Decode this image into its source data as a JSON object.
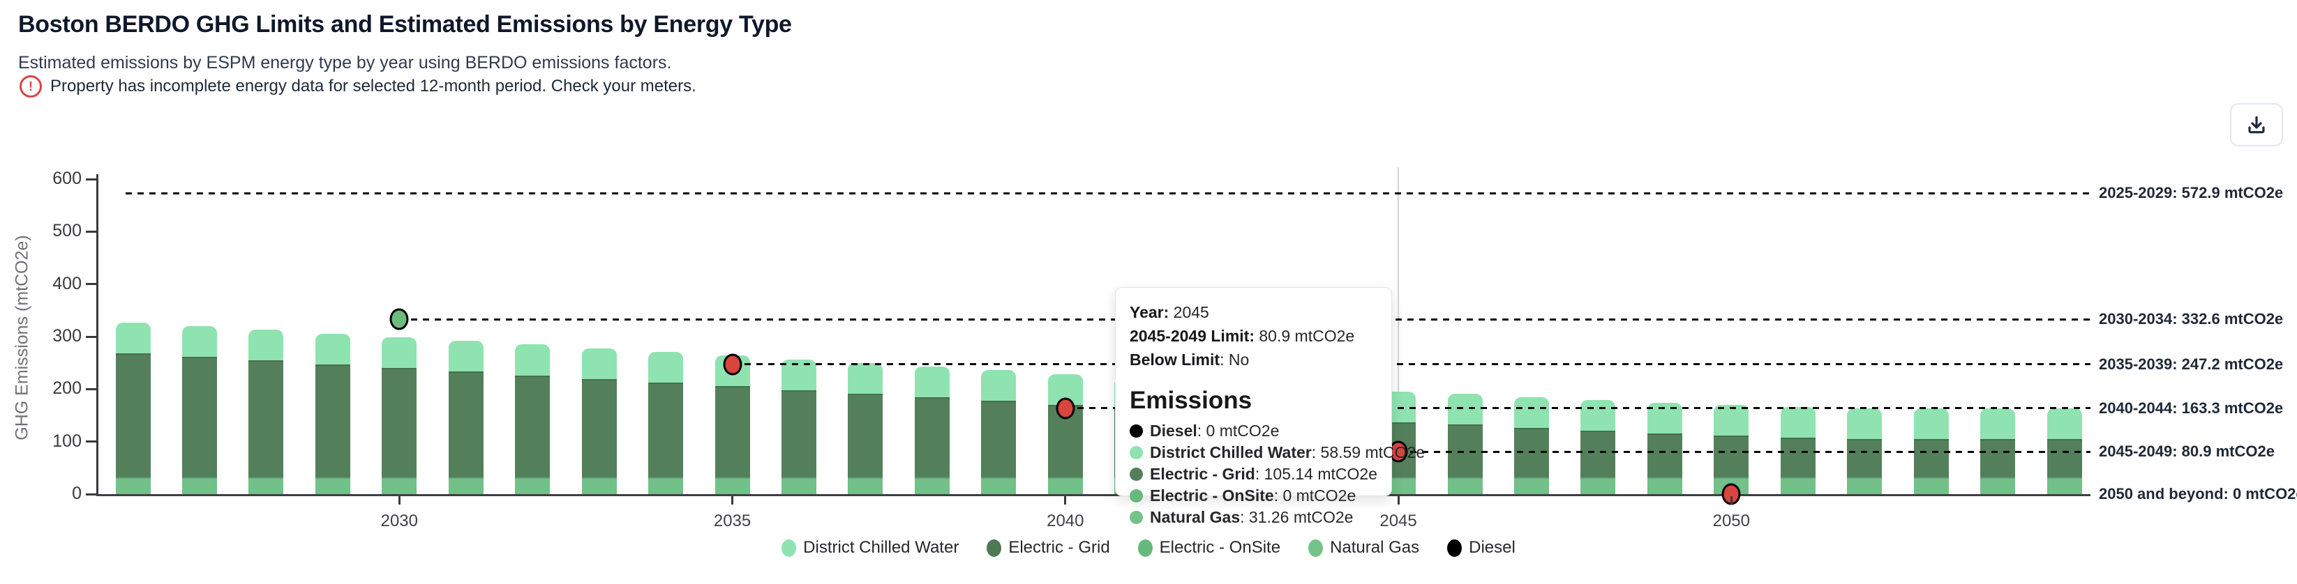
{
  "header": {
    "title": "Boston BERDO GHG Limits and Estimated Emissions by Energy Type",
    "subtitle": "Estimated emissions by ESPM energy type by year using BERDO emissions factors.",
    "warning_text": "Property has incomplete energy data for selected 12-month period. Check your meters.",
    "warning_glyph": "!",
    "warning_color": "#d64545"
  },
  "toolbar": {
    "download_icon": "download-icon"
  },
  "chart_data": {
    "type": "bar",
    "stacked": true,
    "ylabel": "GHG Emissions (mtCO2e)",
    "ylim": [
      0,
      600
    ],
    "yticks": [
      0,
      100,
      200,
      300,
      400,
      500,
      600
    ],
    "xticks": [
      2030,
      2035,
      2040,
      2045,
      2050
    ],
    "grid": false,
    "legend_position": "bottom",
    "years": [
      2026,
      2027,
      2028,
      2029,
      2030,
      2031,
      2032,
      2033,
      2034,
      2035,
      2036,
      2037,
      2038,
      2039,
      2040,
      2041,
      2042,
      2043,
      2044,
      2045,
      2046,
      2047,
      2048,
      2049,
      2050,
      2051,
      2052,
      2053,
      2054,
      2055
    ],
    "stack_order_bottom_to_top": [
      "Natural Gas",
      "Electric - Grid",
      "District Chilled Water"
    ],
    "series": [
      {
        "name": "Natural Gas",
        "color": "#73C088",
        "constant_value": 31.26
      },
      {
        "name": "Electric - Grid",
        "color": "#53805B",
        "values": [
          237,
          230,
          223,
          216,
          209,
          202,
          195,
          188,
          181,
          174,
          167,
          160,
          153,
          146,
          139,
          132,
          125,
          118,
          111,
          105.14,
          101,
          95,
          89,
          84,
          80,
          76,
          74,
          73.5,
          73.5,
          73.5
        ]
      },
      {
        "name": "District Chilled Water",
        "color": "#8FE3B1",
        "constant_value": 58.59
      },
      {
        "name": "Electric - OnSite",
        "color": "#66BA7B",
        "constant_value": 0
      },
      {
        "name": "Diesel",
        "color": "#000000",
        "constant_value": 0
      }
    ],
    "limits": [
      {
        "period": "2025-2029",
        "value": 572.9,
        "label": "2025-2029: 572.9 mtCO2e",
        "line_start_year": null
      },
      {
        "period": "2030-2034",
        "value": 332.6,
        "label": "2030-2034: 332.6 mtCO2e",
        "line_start_year": 2030
      },
      {
        "period": "2035-2039",
        "value": 247.2,
        "label": "2035-2039: 247.2 mtCO2e",
        "line_start_year": 2035
      },
      {
        "period": "2040-2044",
        "value": 163.3,
        "label": "2040-2044: 163.3 mtCO2e",
        "line_start_year": 2040
      },
      {
        "period": "2045-2049",
        "value": 80.9,
        "label": "2045-2049: 80.9 mtCO2e",
        "line_start_year": 2045
      },
      {
        "period": "2050 and beyond",
        "value": 0,
        "label": "2050 and beyond: 0 mtCO2e",
        "line_start_year": 2050,
        "line_is_axis": true
      }
    ],
    "markers": [
      {
        "year": 2030,
        "value": 332.6,
        "status": "below-limit",
        "color": "#6CBC80"
      },
      {
        "year": 2035,
        "value": 247.2,
        "status": "above-limit",
        "color": "#D8453E"
      },
      {
        "year": 2040,
        "value": 163.3,
        "status": "above-limit",
        "color": "#D8453E"
      },
      {
        "year": 2045,
        "value": 80.9,
        "status": "above-limit",
        "color": "#D8453E"
      },
      {
        "year": 2050,
        "value": 0,
        "status": "above-limit",
        "color": "#D8453E"
      }
    ],
    "legend": [
      {
        "label": "District Chilled Water",
        "color": "#8FE3B1"
      },
      {
        "label": "Electric - Grid",
        "color": "#4D7A55"
      },
      {
        "label": "Electric - OnSite",
        "color": "#66BA7B"
      },
      {
        "label": "Natural Gas",
        "color": "#74C389"
      },
      {
        "label": "Diesel",
        "color": "#000000"
      }
    ],
    "crosshair_year": 2045
  },
  "tooltip": {
    "info_rows": [
      {
        "bold": "Year:",
        "rest": " 2045"
      },
      {
        "bold": "2045-2049 Limit:",
        "rest": " 80.9 mtCO2e"
      },
      {
        "bold": "Below Limit",
        "rest": ": No"
      }
    ],
    "heading": "Emissions",
    "emission_rows": [
      {
        "name": "Diesel",
        "color": "#000000",
        "rest": ": 0 mtCO2e"
      },
      {
        "name": "District Chilled Water",
        "color": "#8FE3B1",
        "rest": ": 58.59 mtCO2e"
      },
      {
        "name": "Electric - Grid",
        "color": "#53805B",
        "rest": ": 105.14 mtCO2e"
      },
      {
        "name": "Electric - OnSite",
        "color": "#66BA7B",
        "rest": ": 0 mtCO2e"
      },
      {
        "name": "Natural Gas",
        "color": "#74C389",
        "rest": ": 31.26 mtCO2e"
      }
    ]
  }
}
